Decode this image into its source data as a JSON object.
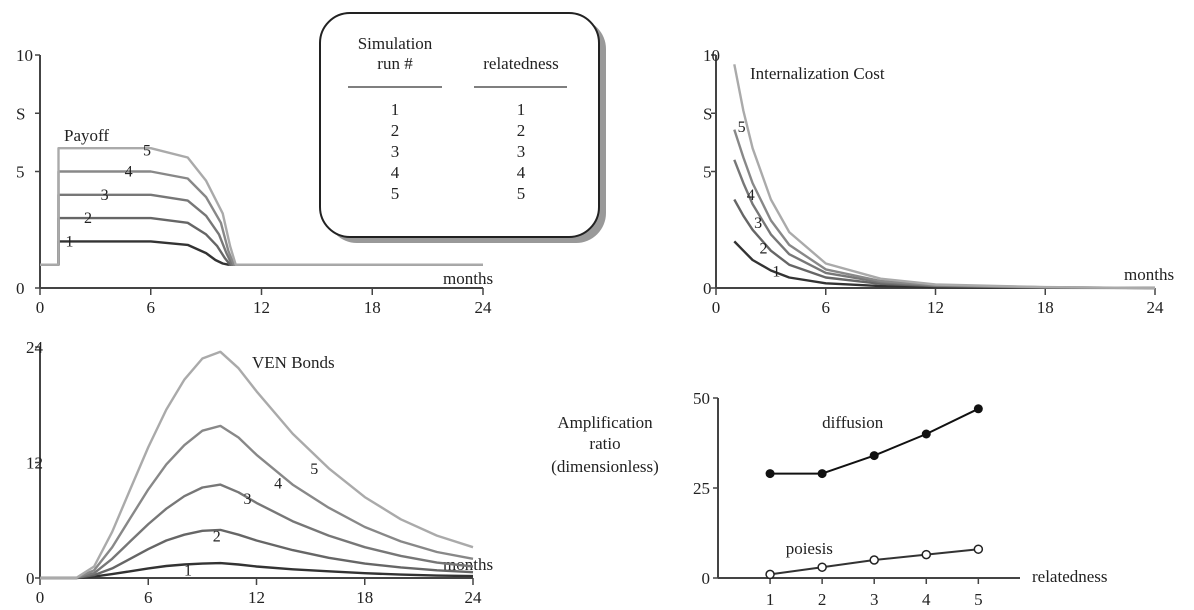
{
  "legend_table": {
    "col1_header_line1": "Simulation",
    "col1_header_line2": "run #",
    "col2_header": "relatedness",
    "rows": [
      [
        "1",
        "1"
      ],
      [
        "2",
        "2"
      ],
      [
        "3",
        "3"
      ],
      [
        "4",
        "4"
      ],
      [
        "5",
        "5"
      ]
    ]
  },
  "chart_data": [
    {
      "id": "payoff",
      "type": "line",
      "title": "Payoff",
      "xlabel": "months",
      "ylabel": "",
      "xlim": [
        0,
        24
      ],
      "ylim": [
        0,
        10
      ],
      "xticks": [
        "0",
        "6",
        "12",
        "18",
        "24"
      ],
      "yticks": [
        "0",
        "5",
        "S",
        "10"
      ],
      "ytick_values": [
        0,
        5,
        7.5,
        10
      ],
      "grid": false,
      "series": [
        {
          "name": "1",
          "color": "#333333",
          "x": [
            0,
            1,
            1,
            2,
            6,
            8,
            9,
            9.5,
            9.9,
            10.2,
            24
          ],
          "y": [
            1,
            1,
            2,
            2,
            2,
            1.85,
            1.5,
            1.2,
            1.05,
            1,
            1
          ]
        },
        {
          "name": "2",
          "color": "#666666",
          "x": [
            0,
            1,
            1,
            2,
            6,
            8,
            9,
            9.6,
            10,
            10.3,
            24
          ],
          "y": [
            1,
            1,
            3,
            3,
            3,
            2.8,
            2.3,
            1.8,
            1.3,
            1,
            1
          ]
        },
        {
          "name": "3",
          "color": "#777777",
          "x": [
            0,
            1,
            1,
            2,
            6,
            8,
            9,
            9.7,
            10.1,
            10.4,
            24
          ],
          "y": [
            1,
            1,
            4,
            4,
            4,
            3.75,
            3.1,
            2.3,
            1.5,
            1,
            1
          ]
        },
        {
          "name": "4",
          "color": "#888888",
          "x": [
            0,
            1,
            1,
            2,
            6,
            8,
            9,
            9.8,
            10.2,
            10.5,
            24
          ],
          "y": [
            1,
            1,
            5,
            5,
            5,
            4.7,
            3.9,
            2.8,
            1.6,
            1,
            1
          ]
        },
        {
          "name": "5",
          "color": "#aaaaaa",
          "x": [
            0,
            1,
            1,
            2,
            6,
            8,
            9,
            9.9,
            10.3,
            10.6,
            24
          ],
          "y": [
            1,
            1,
            6,
            6,
            6,
            5.6,
            4.6,
            3.2,
            1.8,
            1,
            1
          ]
        }
      ],
      "label_positions": [
        {
          "text": "1",
          "x": 1.6,
          "y": 2.0
        },
        {
          "text": "2",
          "x": 2.6,
          "y": 3.0
        },
        {
          "text": "3",
          "x": 3.5,
          "y": 4.0
        },
        {
          "text": "4",
          "x": 4.8,
          "y": 5.0
        },
        {
          "text": "5",
          "x": 5.8,
          "y": 5.9
        }
      ]
    },
    {
      "id": "internalization",
      "type": "line",
      "title": "Internalization Cost",
      "xlabel": "months",
      "ylabel": "",
      "xlim": [
        0,
        24
      ],
      "ylim": [
        0,
        10
      ],
      "xticks": [
        "0",
        "6",
        "12",
        "18",
        "24"
      ],
      "yticks": [
        "0",
        "5",
        "S",
        "10"
      ],
      "ytick_values": [
        0,
        5,
        7.5,
        10
      ],
      "grid": false,
      "series": [
        {
          "name": "1",
          "color": "#333333",
          "x": [
            1,
            1.5,
            2,
            3,
            4,
            6,
            9,
            12,
            18,
            24
          ],
          "y": [
            2.0,
            1.6,
            1.2,
            0.75,
            0.45,
            0.2,
            0.08,
            0.04,
            0.01,
            0
          ]
        },
        {
          "name": "2",
          "color": "#666666",
          "x": [
            1,
            1.5,
            2,
            3,
            4,
            6,
            9,
            12,
            18,
            24
          ],
          "y": [
            3.8,
            3.1,
            2.5,
            1.6,
            1.0,
            0.45,
            0.18,
            0.08,
            0.02,
            0
          ]
        },
        {
          "name": "3",
          "color": "#777777",
          "x": [
            1,
            1.5,
            2,
            3,
            4,
            6,
            9,
            12,
            18,
            24
          ],
          "y": [
            5.5,
            4.5,
            3.6,
            2.3,
            1.45,
            0.65,
            0.25,
            0.1,
            0.03,
            0
          ]
        },
        {
          "name": "4",
          "color": "#888888",
          "x": [
            1,
            1.5,
            2,
            3,
            4,
            6,
            9,
            12,
            18,
            24
          ],
          "y": [
            6.8,
            5.6,
            4.5,
            2.9,
            1.85,
            0.8,
            0.3,
            0.12,
            0.03,
            0
          ]
        },
        {
          "name": "5",
          "color": "#aaaaaa",
          "x": [
            1,
            1.5,
            2,
            3,
            4,
            6,
            9,
            12,
            18,
            24
          ],
          "y": [
            9.6,
            7.6,
            6.0,
            3.8,
            2.4,
            1.05,
            0.4,
            0.15,
            0.04,
            0
          ]
        }
      ],
      "label_positions": [
        {
          "text": "1",
          "x": 3.3,
          "y": 0.7
        },
        {
          "text": "2",
          "x": 2.6,
          "y": 1.7
        },
        {
          "text": "3",
          "x": 2.3,
          "y": 2.8
        },
        {
          "text": "4",
          "x": 1.9,
          "y": 4.0
        },
        {
          "text": "5",
          "x": 1.4,
          "y": 6.9
        }
      ]
    },
    {
      "id": "ven-bonds",
      "type": "line",
      "title": "VEN Bonds",
      "xlabel": "months",
      "ylabel": "",
      "xlim": [
        0,
        24
      ],
      "ylim": [
        0,
        24
      ],
      "xticks": [
        "0",
        "6",
        "12",
        "18",
        "24"
      ],
      "yticks": [
        "0",
        "12",
        "24"
      ],
      "ytick_values": [
        0,
        12,
        24
      ],
      "grid": false,
      "series": [
        {
          "name": "1",
          "color": "#333333",
          "x": [
            0,
            2,
            3,
            4,
            5,
            6,
            7,
            8,
            9,
            10,
            11,
            12,
            14,
            16,
            18,
            20,
            22,
            24
          ],
          "y": [
            0,
            0,
            0.15,
            0.4,
            0.7,
            1.0,
            1.25,
            1.4,
            1.5,
            1.55,
            1.4,
            1.2,
            0.9,
            0.7,
            0.5,
            0.35,
            0.25,
            0.2
          ]
        },
        {
          "name": "2",
          "color": "#666666",
          "x": [
            0,
            2,
            3,
            4,
            5,
            6,
            7,
            8,
            9,
            10,
            11,
            12,
            14,
            16,
            18,
            20,
            22,
            24
          ],
          "y": [
            0,
            0,
            0.3,
            1.0,
            2.0,
            3.0,
            3.9,
            4.5,
            4.9,
            5.0,
            4.5,
            3.9,
            2.9,
            2.1,
            1.5,
            1.1,
            0.8,
            0.6
          ]
        },
        {
          "name": "3",
          "color": "#777777",
          "x": [
            0,
            2,
            3,
            4,
            5,
            6,
            7,
            8,
            9,
            10,
            11,
            12,
            14,
            16,
            18,
            20,
            22,
            24
          ],
          "y": [
            0,
            0,
            0.5,
            2.0,
            3.8,
            5.6,
            7.2,
            8.5,
            9.4,
            9.7,
            8.9,
            7.8,
            5.9,
            4.4,
            3.2,
            2.3,
            1.6,
            1.2
          ]
        },
        {
          "name": "4",
          "color": "#888888",
          "x": [
            0,
            2,
            3,
            4,
            5,
            6,
            7,
            8,
            9,
            10,
            11,
            12,
            14,
            16,
            18,
            20,
            22,
            24
          ],
          "y": [
            0,
            0,
            0.8,
            3.2,
            6.2,
            9.2,
            11.8,
            13.8,
            15.3,
            15.8,
            14.6,
            12.8,
            9.7,
            7.3,
            5.3,
            3.8,
            2.7,
            2.0
          ]
        },
        {
          "name": "5",
          "color": "#aaaaaa",
          "x": [
            0,
            2,
            3,
            4,
            5,
            6,
            7,
            8,
            9,
            10,
            11,
            12,
            14,
            16,
            18,
            20,
            22,
            24
          ],
          "y": [
            0,
            0,
            1.2,
            4.8,
            9.2,
            13.6,
            17.5,
            20.6,
            22.8,
            23.5,
            21.8,
            19.4,
            15.0,
            11.4,
            8.4,
            6.1,
            4.4,
            3.2
          ]
        }
      ],
      "label_positions": [
        {
          "text": "1",
          "x": 8.2,
          "y": 0.8
        },
        {
          "text": "2",
          "x": 9.8,
          "y": 4.3
        },
        {
          "text": "3",
          "x": 11.5,
          "y": 8.2
        },
        {
          "text": "4",
          "x": 13.2,
          "y": 9.8
        },
        {
          "text": "5",
          "x": 15.2,
          "y": 11.3
        }
      ]
    },
    {
      "id": "amplification",
      "type": "line",
      "title": "",
      "ylabel_lines": [
        "Amplification",
        "ratio",
        "(dimensionless)"
      ],
      "xlabel": "relatedness",
      "categories": [
        "1",
        "2",
        "3",
        "4",
        "5"
      ],
      "xlim": [
        0,
        5.8
      ],
      "ylim": [
        0,
        50
      ],
      "yticks": [
        "0",
        "25",
        "50"
      ],
      "ytick_values": [
        0,
        25,
        50
      ],
      "grid": false,
      "series": [
        {
          "name": "diffusion",
          "color": "#111111",
          "marker": "filled",
          "x": [
            1,
            2,
            3,
            4,
            5
          ],
          "y": [
            29,
            29,
            34,
            40,
            47
          ]
        },
        {
          "name": "poiesis",
          "color": "#333333",
          "marker": "open-star",
          "x": [
            1,
            2,
            3,
            4,
            5
          ],
          "y": [
            1,
            3,
            5,
            6.5,
            8
          ]
        }
      ],
      "label_positions": [
        {
          "text": "diffusion",
          "x": 2.0,
          "y": 43
        },
        {
          "text": "poiesis",
          "x": 1.3,
          "y": 8
        }
      ]
    }
  ]
}
